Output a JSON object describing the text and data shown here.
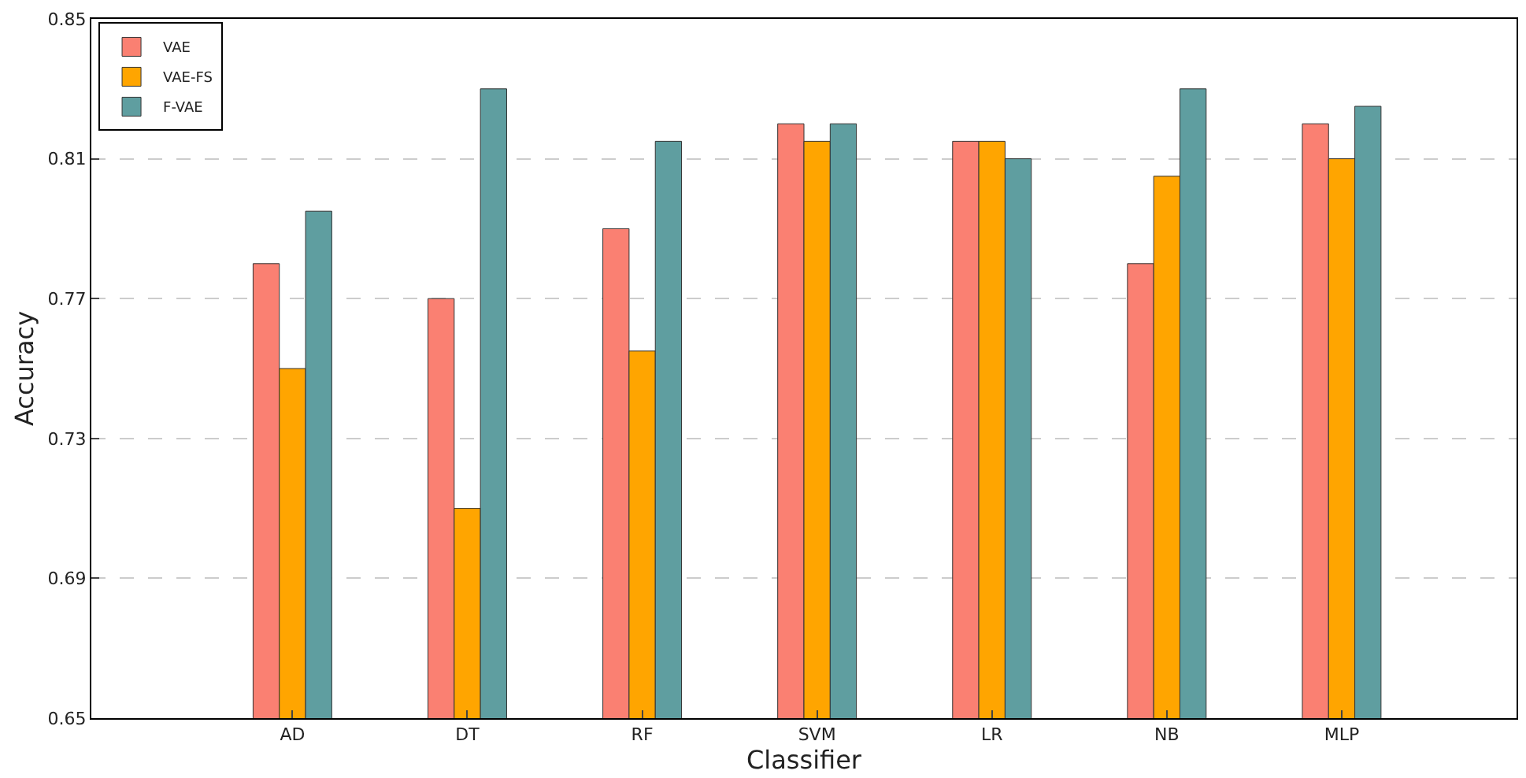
{
  "chart_data": {
    "type": "bar",
    "xlabel": "Classifier",
    "ylabel": "Accuracy",
    "categories": [
      "AD",
      "DT",
      "RF",
      "SVM",
      "LR",
      "NB",
      "MLP"
    ],
    "series": [
      {
        "name": "VAE",
        "color": "#fa8072",
        "values": [
          0.78,
          0.77,
          0.79,
          0.82,
          0.815,
          0.78,
          0.82
        ]
      },
      {
        "name": "VAE-FS",
        "color": "#ffa500",
        "values": [
          0.75,
          0.71,
          0.755,
          0.815,
          0.815,
          0.805,
          0.81
        ]
      },
      {
        "name": "F-VAE",
        "color": "#5f9ea0",
        "values": [
          0.795,
          0.83,
          0.815,
          0.82,
          0.81,
          0.83,
          0.825
        ]
      }
    ],
    "ylim": [
      0.65,
      0.85
    ],
    "yticks": [
      0.65,
      0.69,
      0.73,
      0.77,
      0.81,
      0.85
    ],
    "grid": "y",
    "legend": "top left"
  }
}
